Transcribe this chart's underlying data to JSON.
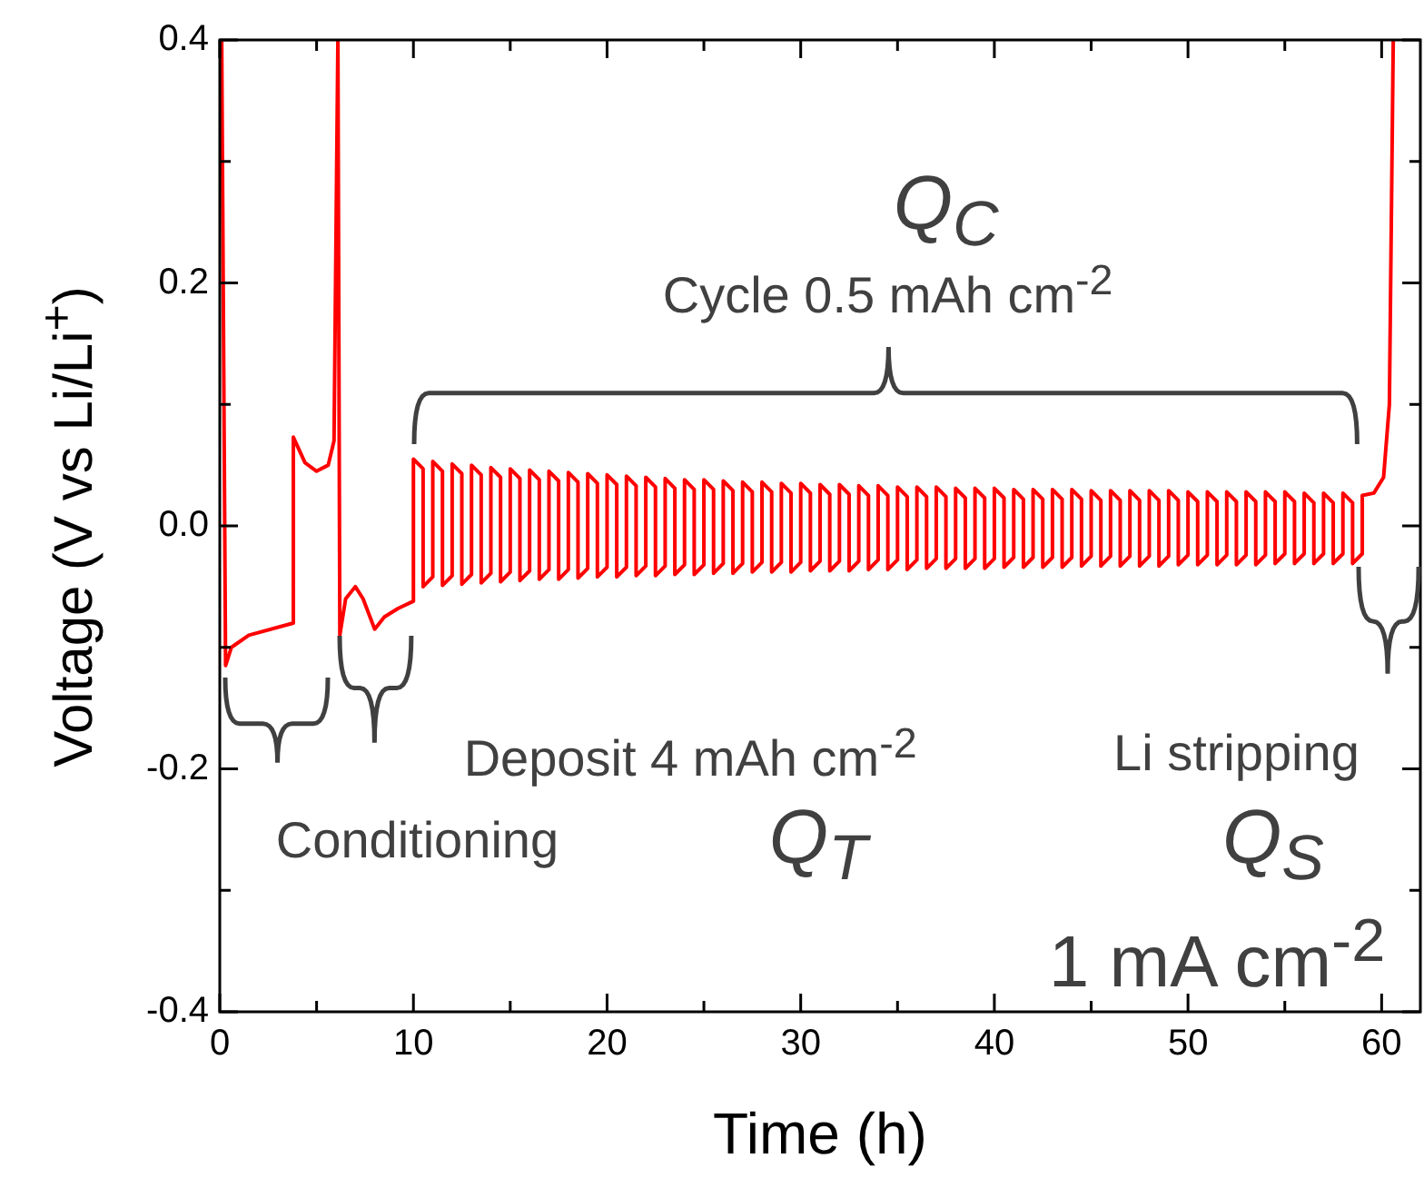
{
  "chart_data": {
    "type": "line",
    "xlabel": "Time (h)",
    "ylabel": "Voltage (V vs Li/Li$^{+}$)",
    "xlim": [
      0,
      62
    ],
    "ylim": [
      -0.4,
      0.4
    ],
    "xticks": [
      0,
      {
        "value": 5,
        "label": null
      },
      10,
      {
        "value": 15,
        "label": null
      },
      20,
      {
        "value": 25,
        "label": null
      },
      30,
      {
        "value": 35,
        "label": null
      },
      40,
      {
        "value": 45,
        "label": null
      },
      50,
      {
        "value": 55,
        "label": null
      },
      60
    ],
    "yticks": [
      -0.4,
      {
        "value": -0.3,
        "label": null
      },
      -0.2,
      {
        "value": -0.1,
        "label": null
      },
      {
        "value": 0,
        "label": "0.0"
      },
      {
        "value": 0.1,
        "label": null
      },
      0.2,
      {
        "value": 0.3,
        "label": null
      },
      0.4
    ],
    "grid": false,
    "legend": false,
    "marker": "none",
    "line_style": "solid",
    "annotations": [
      "Q$_{C}$",
      "Cycle 0.5 mAh cm$^{-2}$",
      "Conditioning",
      "Deposit 4 mAh cm$^{-2}$",
      "Q$_{T}$",
      "Li stripping",
      "Q$_{S}$",
      "1 mA cm$^{-2}$"
    ],
    "series": [
      {
        "color": "#ff0000",
        "x": [
          0.1,
          0.3,
          0.6,
          1.5,
          3.8,
          3.8,
          4.4,
          5.0,
          5.6,
          5.9,
          6.1,
          6.2,
          6.5,
          7.0,
          7.4,
          8.0,
          8.5,
          9.2,
          10,
          10,
          10.5,
          10.5,
          11,
          11,
          11.5,
          11.5,
          12,
          12,
          12.5,
          12.5,
          13,
          13,
          13.5,
          13.5,
          14,
          14,
          14.5,
          14.5,
          15,
          15,
          15.5,
          15.5,
          16,
          16,
          16.5,
          16.5,
          17,
          17,
          17.5,
          17.5,
          18,
          18,
          18.5,
          18.5,
          19,
          19,
          19.5,
          19.5,
          20,
          20,
          20.5,
          20.5,
          21,
          21,
          21.5,
          21.5,
          22,
          22,
          22.5,
          22.5,
          23,
          23,
          23.5,
          23.5,
          24,
          24,
          24.5,
          24.5,
          25,
          25,
          25.5,
          25.5,
          26,
          26,
          26.5,
          26.5,
          27,
          27,
          27.5,
          27.5,
          28,
          28,
          28.5,
          28.5,
          29,
          29,
          29.5,
          29.5,
          30,
          30,
          30.5,
          30.5,
          31,
          31,
          31.5,
          31.5,
          32,
          32,
          32.5,
          32.5,
          33,
          33,
          33.5,
          33.5,
          34,
          34,
          34.5,
          34.5,
          35,
          35,
          35.5,
          35.5,
          36,
          36,
          36.5,
          36.5,
          37,
          37,
          37.5,
          37.5,
          38,
          38,
          38.5,
          38.5,
          39,
          39,
          39.5,
          39.5,
          40,
          40,
          40.5,
          40.5,
          41,
          41,
          41.5,
          41.5,
          42,
          42,
          42.5,
          42.5,
          43,
          43,
          43.5,
          43.5,
          44,
          44,
          44.5,
          44.5,
          45,
          45,
          45.5,
          45.5,
          46,
          46,
          46.5,
          46.5,
          47,
          47,
          47.5,
          47.5,
          48,
          48,
          48.5,
          48.5,
          49,
          49,
          49.5,
          49.5,
          50,
          50,
          50.5,
          50.5,
          51,
          51,
          51.5,
          51.5,
          52,
          52,
          52.5,
          52.5,
          53,
          53,
          53.5,
          53.5,
          54,
          54,
          54.5,
          54.5,
          55,
          55,
          55.5,
          55.5,
          56,
          56,
          56.5,
          56.5,
          57,
          57,
          57.5,
          57.5,
          58,
          58,
          58.5,
          58.5,
          59,
          59,
          59.6,
          60.1,
          60.4,
          60.6
        ],
        "values": [
          0.4,
          -0.115,
          -0.1,
          -0.09,
          -0.08,
          0.073,
          0.052,
          0.045,
          0.05,
          0.07,
          0.4,
          -0.09,
          -0.06,
          -0.05,
          -0.06,
          -0.085,
          -0.075,
          -0.068,
          -0.062,
          0.055,
          0.047,
          -0.05,
          -0.042,
          0.053,
          0.045,
          -0.049,
          -0.041,
          0.051,
          0.043,
          -0.048,
          -0.04,
          0.05,
          0.042,
          -0.047,
          -0.039,
          0.048,
          0.04,
          -0.046,
          -0.038,
          0.047,
          0.039,
          -0.045,
          -0.037,
          0.046,
          0.038,
          -0.044,
          -0.036,
          0.045,
          0.037,
          -0.044,
          -0.036,
          0.044,
          0.036,
          -0.043,
          -0.035,
          0.043,
          0.035,
          -0.042,
          -0.034,
          0.042,
          0.034,
          -0.042,
          -0.034,
          0.041,
          0.033,
          -0.041,
          -0.033,
          0.04,
          0.032,
          -0.041,
          -0.033,
          0.039,
          0.031,
          -0.04,
          -0.032,
          0.038,
          0.03,
          -0.04,
          -0.032,
          0.038,
          0.03,
          -0.039,
          -0.031,
          0.037,
          0.029,
          -0.039,
          -0.031,
          0.036,
          0.028,
          -0.038,
          -0.03,
          0.036,
          0.028,
          -0.038,
          -0.03,
          0.035,
          0.027,
          -0.038,
          -0.03,
          0.035,
          0.027,
          -0.037,
          -0.029,
          0.034,
          0.026,
          -0.037,
          -0.029,
          0.034,
          0.026,
          -0.037,
          -0.029,
          0.033,
          0.025,
          -0.036,
          -0.028,
          0.033,
          0.025,
          -0.036,
          -0.028,
          0.032,
          0.024,
          -0.036,
          -0.028,
          0.032,
          0.024,
          -0.035,
          -0.027,
          0.032,
          0.024,
          -0.035,
          -0.027,
          0.031,
          0.023,
          -0.035,
          -0.027,
          0.031,
          0.023,
          -0.035,
          -0.027,
          0.031,
          0.023,
          -0.034,
          -0.026,
          0.03,
          0.022,
          -0.034,
          -0.026,
          0.03,
          0.022,
          -0.034,
          -0.026,
          0.03,
          0.022,
          -0.034,
          -0.026,
          0.03,
          0.022,
          -0.033,
          -0.025,
          0.029,
          0.021,
          -0.033,
          -0.025,
          0.029,
          0.021,
          -0.033,
          -0.025,
          0.029,
          0.021,
          -0.033,
          -0.025,
          0.029,
          0.021,
          -0.033,
          -0.025,
          0.029,
          0.021,
          -0.032,
          -0.024,
          0.028,
          0.02,
          -0.032,
          -0.024,
          0.028,
          0.02,
          -0.032,
          -0.024,
          0.028,
          0.02,
          -0.032,
          -0.024,
          0.028,
          0.02,
          -0.032,
          -0.024,
          0.028,
          0.02,
          -0.031,
          -0.023,
          0.028,
          0.02,
          -0.031,
          -0.023,
          0.027,
          0.019,
          -0.031,
          -0.023,
          0.027,
          0.019,
          -0.031,
          -0.023,
          0.027,
          0.019,
          -0.031,
          -0.023,
          0.025,
          0.027,
          0.04,
          0.1,
          0.4
        ]
      }
    ]
  }
}
